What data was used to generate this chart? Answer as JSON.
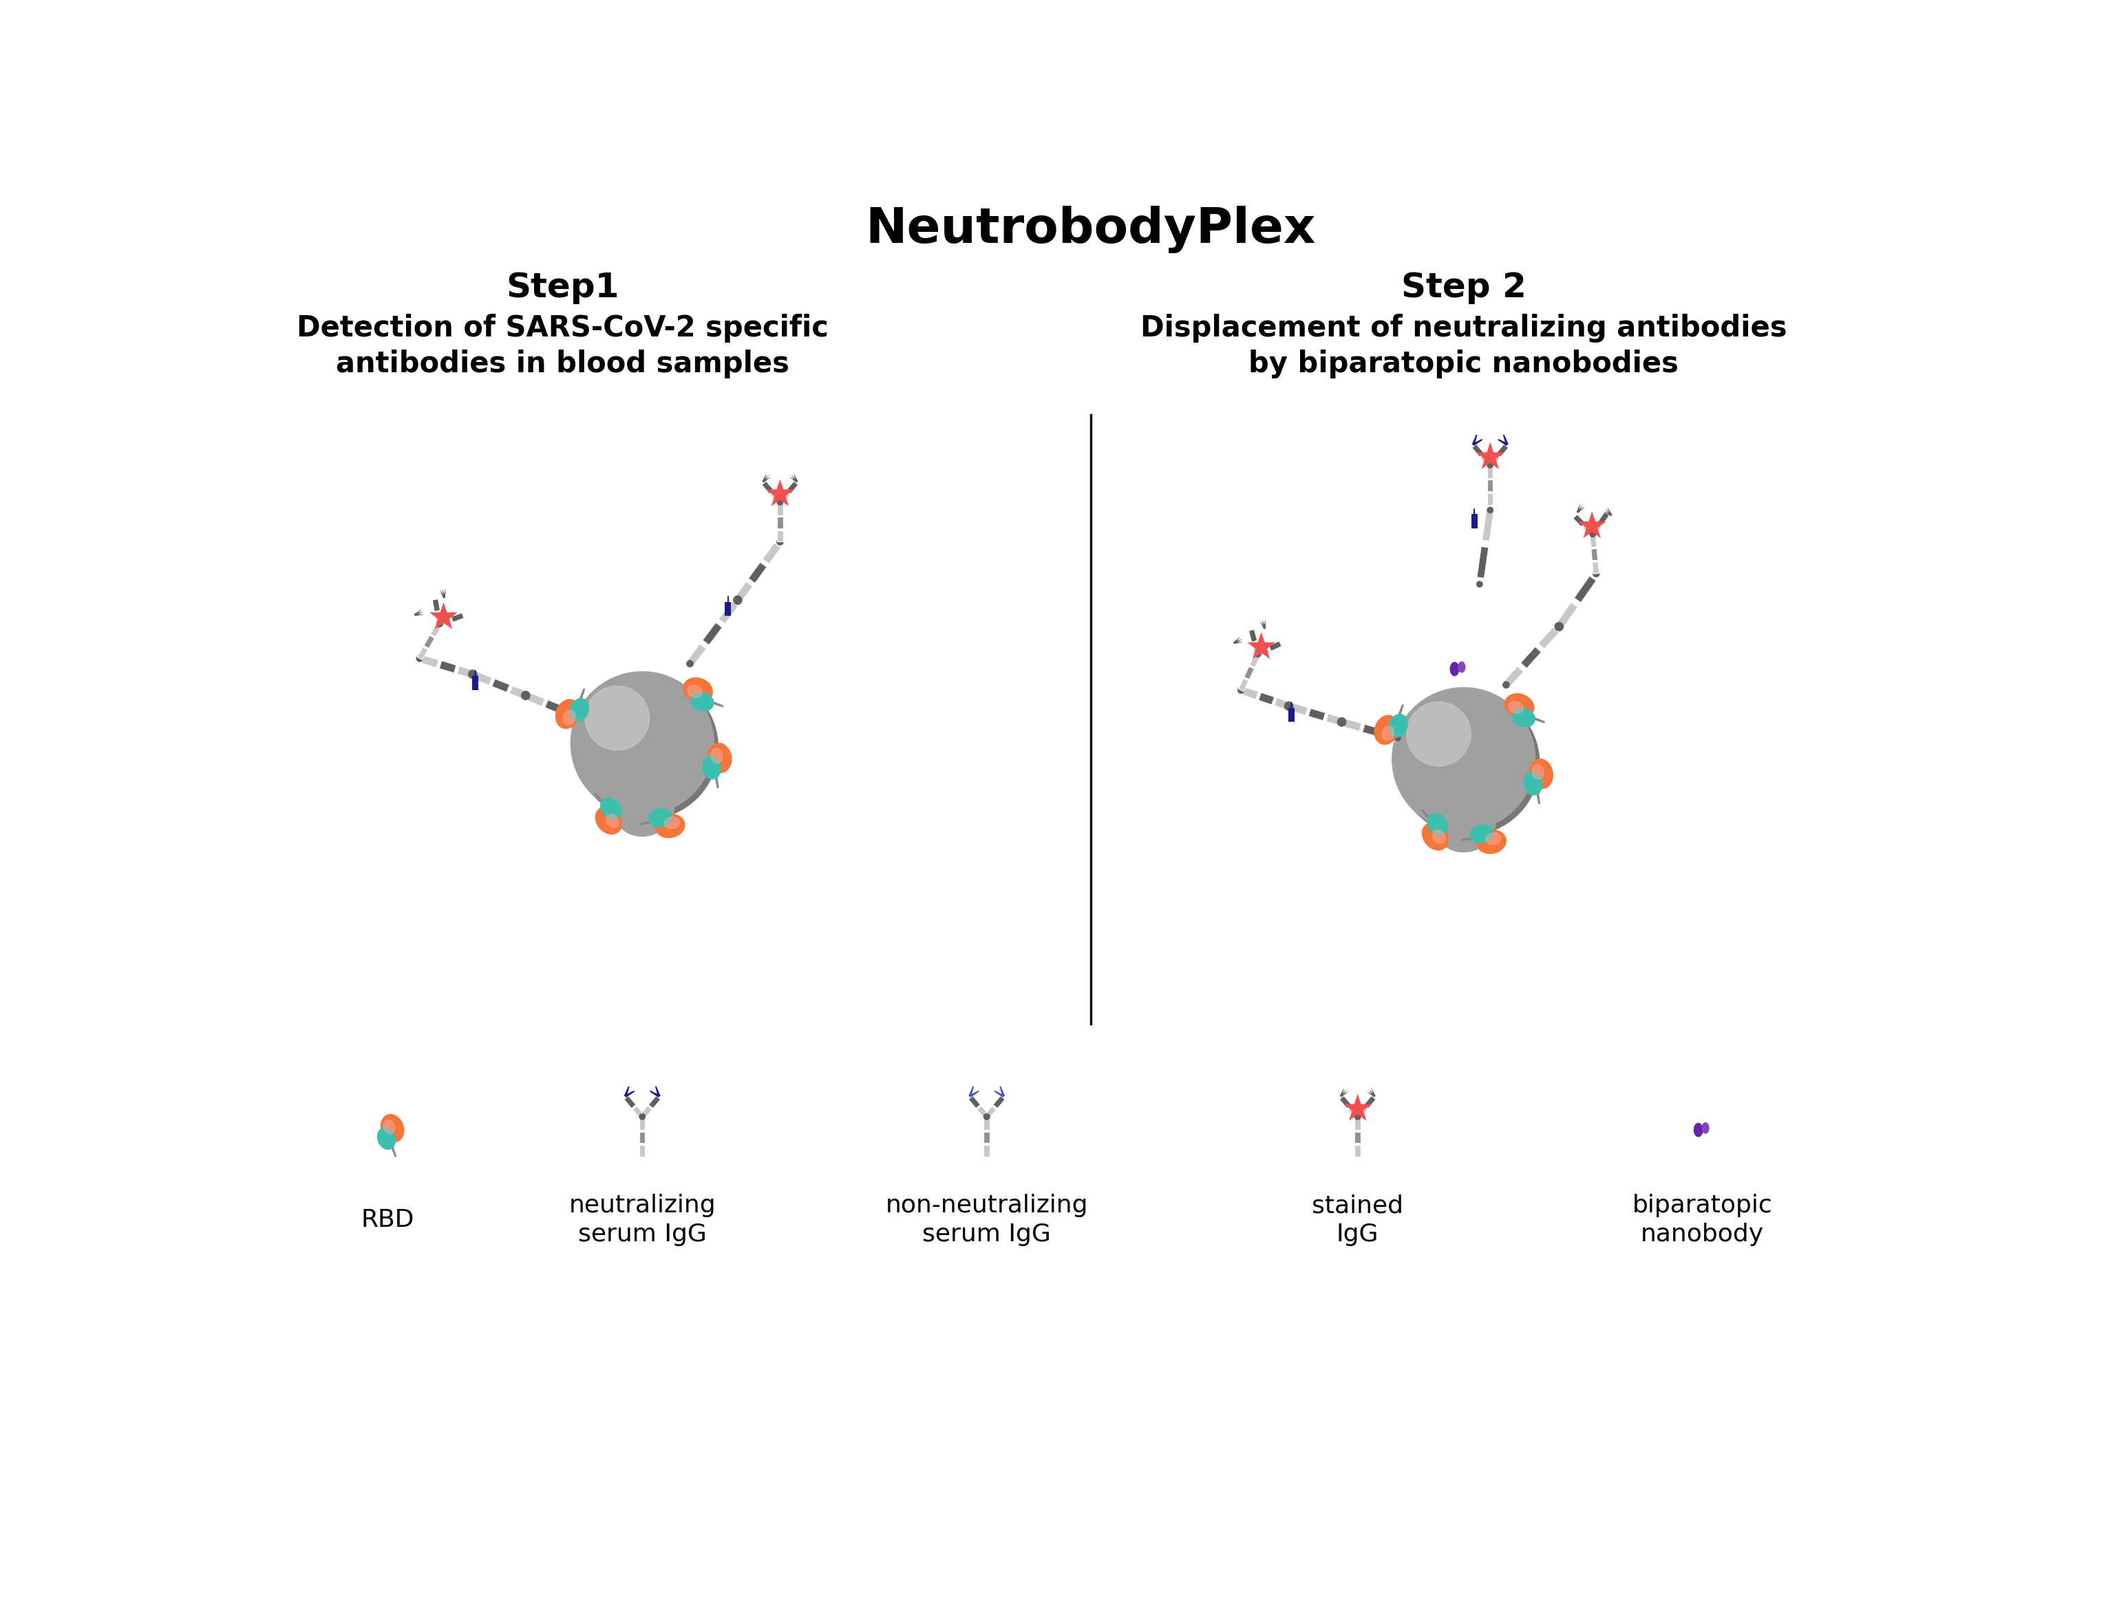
{
  "title": "NeutrobodyPlex",
  "step1_title": "Step1",
  "step2_title": "Step 2",
  "step1_subtitle": "Detection of SARS-CoV-2 specific\nantibodies in blood samples",
  "step2_subtitle": "Displacement of neutralizing antibodies\nby biparatopic nanobodies",
  "legend_labels": [
    "RBD",
    "neutralizing\nserum IgG",
    "non-neutralizing\nserum IgG",
    "stained\nIgG",
    "biparatopic\nnanobody"
  ],
  "rbd_orange": "#F5763A",
  "rbd_teal": "#3DBFB0",
  "rbd_pink": "#F7A8A0",
  "blue_dark": "#1A1A8C",
  "star_red": "#F05050",
  "nanobody_purple": "#8844BB",
  "nanobody_purple2": "#6622AA",
  "bead_light": "#C8C8C8",
  "bead_mid": "#A0A0A0",
  "bead_dark": "#787878",
  "ab_light": "#C8C8C8",
  "ab_mid": "#909090",
  "ab_dark": "#606060",
  "background": "#FFFFFF",
  "title_fontsize": 52,
  "step_fontsize": 36,
  "subtitle_fontsize": 30,
  "legend_fontsize": 26
}
